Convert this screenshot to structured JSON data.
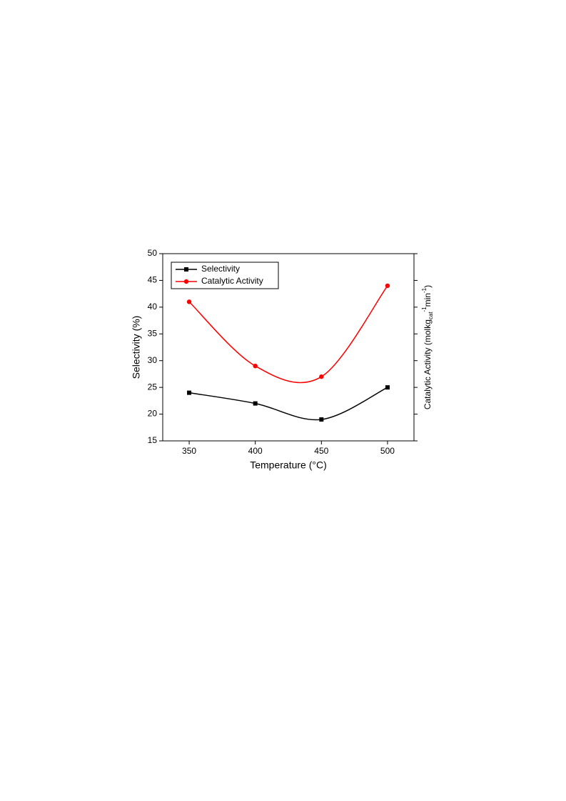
{
  "chart_data": {
    "type": "line",
    "x_label": "Temperature (°C)",
    "y_label": "Selectivity (%)",
    "y2_label_parts": [
      "Catalytic Activity (molkg",
      "cat",
      "-1",
      "min",
      "-1",
      ")"
    ],
    "x": [
      350,
      400,
      450,
      500
    ],
    "series": [
      {
        "name": "Selectivity",
        "color": "#000000",
        "marker": "square",
        "values": [
          24,
          22,
          19,
          25
        ]
      },
      {
        "name": "Catalytic Activity",
        "color": "#ff0000",
        "marker": "circle",
        "values": [
          41,
          29,
          27,
          44
        ]
      }
    ],
    "xlim": [
      330,
      520
    ],
    "xticks": [
      350,
      400,
      450,
      500
    ],
    "ylim": [
      15,
      50
    ],
    "yticks": [
      15,
      20,
      25,
      30,
      35,
      40,
      45,
      50
    ],
    "smooth": true,
    "legend": "upper left"
  }
}
